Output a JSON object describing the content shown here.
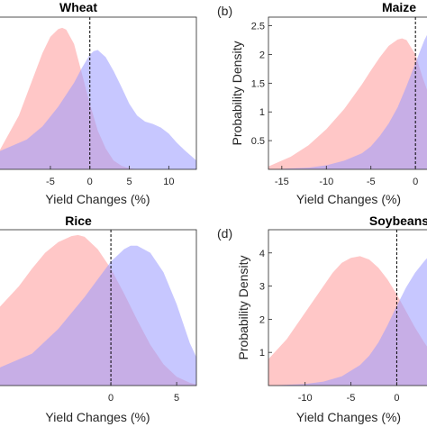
{
  "chart_data": [
    {
      "type": "area",
      "panel_label": "",
      "title": "Wheat",
      "xlabel": "Yield Changes (%)",
      "ylabel": "",
      "xlim": [
        -11.5,
        13.5
      ],
      "ylim": [
        0,
        2.55
      ],
      "xticks": [
        -5,
        0,
        5,
        10
      ],
      "yticks": [],
      "vline": 0,
      "series": [
        {
          "color": "#ff9999",
          "x": [
            -11.5,
            -9,
            -7,
            -6,
            -5,
            -4,
            -3.5,
            -3,
            -2,
            -1,
            0,
            1,
            2,
            3,
            4,
            5,
            6
          ],
          "y": [
            0.3,
            0.9,
            1.6,
            1.95,
            2.22,
            2.35,
            2.37,
            2.34,
            2.1,
            1.6,
            1.1,
            0.65,
            0.35,
            0.15,
            0.06,
            0.02,
            0
          ]
        },
        {
          "color": "#9999ff",
          "x": [
            -11.5,
            -8,
            -6,
            -4,
            -2,
            -1,
            0,
            0.5,
            1,
            2,
            3,
            4,
            5,
            6,
            7,
            8,
            9,
            10,
            11,
            12,
            13.5
          ],
          "y": [
            0.3,
            0.5,
            0.72,
            1.05,
            1.45,
            1.7,
            1.92,
            1.98,
            2.0,
            1.88,
            1.65,
            1.38,
            1.1,
            0.9,
            0.8,
            0.76,
            0.7,
            0.6,
            0.45,
            0.32,
            0.15
          ]
        }
      ]
    },
    {
      "type": "area",
      "panel_label": "(b)",
      "title": "Maize",
      "xlabel": "Yield Changes (%)",
      "ylabel": "Probability Density",
      "xlim": [
        -16.5,
        1.5
      ],
      "ylim": [
        0,
        2.65
      ],
      "xticks": [
        -15,
        -10,
        -5,
        0
      ],
      "yticks": [
        0.5,
        1,
        1.5,
        2,
        2.5
      ],
      "ytick_labels": [
        "0.5",
        "1",
        "1.5",
        "2",
        "2.5"
      ],
      "vline": 0,
      "series": [
        {
          "color": "#ff9999",
          "x": [
            -16.5,
            -14,
            -12,
            -10,
            -8,
            -6,
            -5,
            -4,
            -3,
            -2,
            -1.5,
            -1,
            0,
            0.8,
            1.5
          ],
          "y": [
            0.05,
            0.22,
            0.42,
            0.7,
            1.05,
            1.48,
            1.72,
            1.95,
            2.15,
            2.26,
            2.28,
            2.25,
            2.0,
            1.6,
            1.3
          ]
        },
        {
          "color": "#9999ff",
          "x": [
            -16.5,
            -12,
            -10,
            -8,
            -6,
            -5,
            -4,
            -3,
            -2,
            -1,
            0,
            0.5,
            1,
            1.5
          ],
          "y": [
            0,
            0.03,
            0.07,
            0.15,
            0.28,
            0.4,
            0.58,
            0.8,
            1.08,
            1.45,
            1.85,
            2.05,
            2.25,
            2.4
          ]
        }
      ]
    },
    {
      "type": "area",
      "panel_label": "",
      "title": "Rice",
      "xlabel": "Yield Changes (%)",
      "ylabel": "",
      "xlim": [
        -8.5,
        6.5
      ],
      "ylim": [
        0,
        4.4
      ],
      "xticks": [
        0,
        5
      ],
      "yticks": [],
      "vline": 0,
      "series": [
        {
          "color": "#ff9999",
          "x": [
            -8.5,
            -7,
            -6,
            -5,
            -4,
            -3,
            -2.5,
            -2,
            -1,
            0,
            1,
            2,
            3,
            4,
            5,
            6,
            6.5
          ],
          "y": [
            2.2,
            2.8,
            3.3,
            3.75,
            4.05,
            4.22,
            4.25,
            4.2,
            3.85,
            3.3,
            2.6,
            1.85,
            1.15,
            0.6,
            0.25,
            0.08,
            0.03
          ]
        },
        {
          "color": "#9999ff",
          "x": [
            -8.5,
            -6,
            -4,
            -2,
            -1,
            0,
            1,
            1.5,
            2,
            3,
            4,
            5,
            6,
            6.5
          ],
          "y": [
            0.5,
            0.9,
            1.6,
            2.5,
            3.0,
            3.5,
            3.85,
            3.95,
            3.95,
            3.75,
            3.2,
            2.3,
            1.2,
            0.8
          ]
        }
      ]
    },
    {
      "type": "area",
      "panel_label": "(d)",
      "title": "Soybeans",
      "xlabel": "Yield Changes (%)",
      "ylabel": "Probability Density",
      "xlim": [
        -14,
        3.5
      ],
      "ylim": [
        0,
        4.7
      ],
      "xticks": [
        -10,
        -5,
        0
      ],
      "yticks": [
        1,
        2,
        3,
        4
      ],
      "ytick_labels": [
        "1",
        "2",
        "3",
        "4"
      ],
      "vline": 0,
      "series": [
        {
          "color": "#ff9999",
          "x": [
            -14,
            -12,
            -10,
            -8,
            -7,
            -6,
            -5,
            -4,
            -3,
            -2,
            -1,
            0,
            1,
            2,
            3,
            3.5
          ],
          "y": [
            0.8,
            1.4,
            2.2,
            3.0,
            3.4,
            3.7,
            3.85,
            3.9,
            3.8,
            3.55,
            3.2,
            2.75,
            2.25,
            1.75,
            1.3,
            1.1
          ]
        },
        {
          "color": "#9999ff",
          "x": [
            -14,
            -10,
            -8,
            -6,
            -4,
            -3,
            -2,
            -1,
            0,
            1,
            2,
            3,
            3.5
          ],
          "y": [
            0,
            0.05,
            0.12,
            0.28,
            0.62,
            0.9,
            1.3,
            1.82,
            2.4,
            2.95,
            3.4,
            3.75,
            3.9
          ]
        }
      ]
    }
  ]
}
